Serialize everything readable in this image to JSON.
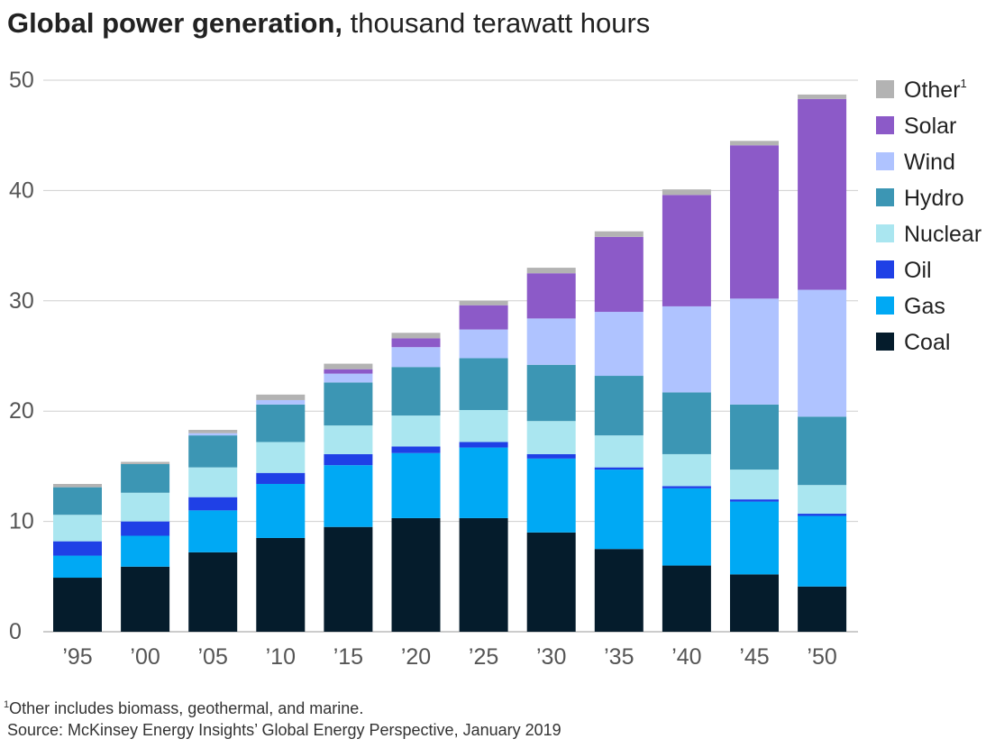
{
  "title": {
    "bold": "Global power generation,",
    "normal": "thousand terawatt hours"
  },
  "footnotes": {
    "marker": "1",
    "note": "Other includes biomass, geothermal, and marine.",
    "source": "Source: McKinsey Energy Insights’ Global Energy Perspective, January 2019"
  },
  "chart_data": {
    "type": "bar",
    "stacked": true,
    "title": "Global power generation, thousand terawatt hours",
    "xlabel": "",
    "ylabel": "thousand terawatt hours",
    "ylim": [
      0,
      50
    ],
    "yticks": [
      "0",
      "10",
      "20",
      "30",
      "40",
      "50"
    ],
    "grid": true,
    "legend_position": "right",
    "categories": [
      "’95",
      "’00",
      "’05",
      "’10",
      "’15",
      "’20",
      "’25",
      "’30",
      "’35",
      "’40",
      "’45",
      "’50"
    ],
    "series": [
      {
        "name": "Coal",
        "color": "#051c2c",
        "values": [
          4.9,
          5.9,
          7.2,
          8.5,
          9.5,
          10.3,
          10.3,
          9.0,
          7.5,
          6.0,
          5.2,
          4.1
        ]
      },
      {
        "name": "Gas",
        "color": "#00a9f4",
        "values": [
          2.0,
          2.8,
          3.8,
          4.9,
          5.6,
          5.9,
          6.4,
          6.7,
          7.2,
          7.0,
          6.6,
          6.4
        ]
      },
      {
        "name": "Oil",
        "color": "#1f40e6",
        "values": [
          1.3,
          1.3,
          1.2,
          1.0,
          1.0,
          0.6,
          0.5,
          0.4,
          0.2,
          0.2,
          0.2,
          0.2
        ]
      },
      {
        "name": "Nuclear",
        "color": "#aae6f0",
        "values": [
          2.4,
          2.6,
          2.7,
          2.8,
          2.6,
          2.8,
          2.9,
          3.0,
          2.9,
          2.9,
          2.7,
          2.6
        ]
      },
      {
        "name": "Hydro",
        "color": "#3c96b4",
        "values": [
          2.5,
          2.6,
          2.9,
          3.4,
          3.9,
          4.4,
          4.7,
          5.1,
          5.4,
          5.6,
          5.9,
          6.2
        ]
      },
      {
        "name": "Wind",
        "color": "#afc3ff",
        "values": [
          0.0,
          0.0,
          0.2,
          0.4,
          0.8,
          1.8,
          2.6,
          4.2,
          5.8,
          7.8,
          9.6,
          11.5
        ]
      },
      {
        "name": "Solar",
        "color": "#8c5ac8",
        "values": [
          0.0,
          0.0,
          0.0,
          0.0,
          0.4,
          0.8,
          2.2,
          4.1,
          6.8,
          10.1,
          13.9,
          17.3
        ]
      },
      {
        "name": "Other",
        "superscript": "1",
        "color": "#b3b3b3",
        "values": [
          0.3,
          0.2,
          0.3,
          0.5,
          0.5,
          0.5,
          0.4,
          0.5,
          0.5,
          0.5,
          0.4,
          0.4
        ]
      }
    ]
  }
}
